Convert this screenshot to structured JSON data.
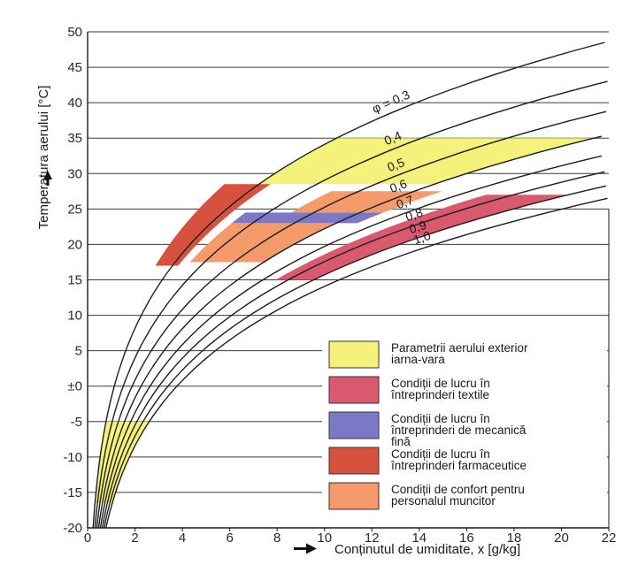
{
  "chart_data": {
    "type": "line",
    "title": "",
    "xlabel": "Conținutul de umiditate, x [g/kg]",
    "ylabel": "Temperatura aerului [°C]",
    "xlim": [
      0,
      22
    ],
    "ylim": [
      -20,
      50
    ],
    "x_ticks": [
      0,
      2,
      4,
      6,
      8,
      10,
      12,
      14,
      16,
      18,
      20,
      22
    ],
    "x_tick_labels": [
      "0",
      "2",
      "4",
      "6",
      "8",
      "10",
      "12",
      "14",
      "16",
      "18",
      "20",
      "22"
    ],
    "y_ticks": [
      -20,
      -15,
      -10,
      -5,
      0,
      5,
      10,
      15,
      20,
      25,
      30,
      35,
      40,
      45,
      50
    ],
    "y_tick_labels": [
      "-20",
      "-15",
      "-10",
      "-5",
      "±0",
      "5",
      "10",
      "15",
      "20",
      "25",
      "30",
      "35",
      "40",
      "45",
      "50"
    ],
    "grid": "horizontal",
    "series": [
      {
        "name": "φ = 0.3",
        "label": "φ = 0.3",
        "phi": 0.3
      },
      {
        "name": "0.4",
        "label": "0,4",
        "phi": 0.4
      },
      {
        "name": "0.5",
        "label": "0,5",
        "phi": 0.5
      },
      {
        "name": "0.6",
        "label": "0,6",
        "phi": 0.6
      },
      {
        "name": "0.7",
        "label": "0,7",
        "phi": 0.7
      },
      {
        "name": "0.8",
        "label": "0,8",
        "phi": 0.8
      },
      {
        "name": "0.9",
        "label": "0,9",
        "phi": 0.9
      },
      {
        "name": "1.0",
        "label": "1,0",
        "phi": 1.0
      }
    ],
    "regions": [
      {
        "id": "exterior",
        "color": "#f4f27a",
        "shapes": [
          {
            "t_low": -16.5,
            "t_high": -5,
            "phi_left": 1.0,
            "phi_right": 0.3
          },
          {
            "t_low": 28.5,
            "t_high": 35,
            "phi_left": 0.3,
            "phi_right": 0.6
          }
        ]
      },
      {
        "id": "textile",
        "color": "#d95a6e",
        "shapes": [
          {
            "t_low": 15,
            "t_high": 27,
            "phi_left": 0.9,
            "phi_right": 0.75
          }
        ]
      },
      {
        "id": "mecanica",
        "color": "#7c78c8",
        "shapes": [
          {
            "t_low": 23,
            "t_high": 24.5,
            "phi_left": 0.35,
            "phi_right": 0.65
          }
        ]
      },
      {
        "id": "farmaceutice",
        "color": "#d6523e",
        "shapes": [
          {
            "t_low": 17,
            "t_high": 28.5,
            "phi_left": 0.24,
            "phi_right": 0.32
          }
        ]
      },
      {
        "id": "confort",
        "color": "#f59a6a",
        "shapes": [
          {
            "t_low": 17.5,
            "t_high": 23,
            "phi_left": 0.35,
            "phi_right": 0.6
          },
          {
            "t_low": 24.5,
            "t_high": 27.5,
            "phi_left": 0.45,
            "phi_right": 0.65
          }
        ]
      }
    ],
    "legend_position": "bottom-right",
    "legend": [
      {
        "region": "exterior",
        "color": "#f4f27a",
        "lines": [
          "Parametrii aerului exterior",
          "iarna-vara"
        ]
      },
      {
        "region": "textile",
        "color": "#d95a6e",
        "lines": [
          "Condiții de lucru în",
          "întreprinderi textile"
        ]
      },
      {
        "region": "mecanica",
        "color": "#7c78c8",
        "lines": [
          "Condiții de lucru în",
          "întreprinderi de mecanică",
          "fină"
        ]
      },
      {
        "region": "farmaceutice",
        "color": "#d6523e",
        "lines": [
          "Condiții de lucru în",
          "întreprinderi farmaceutice"
        ]
      },
      {
        "region": "confort",
        "color": "#f59a6a",
        "lines": [
          "Condiții de confort pentru",
          "personalul muncitor"
        ]
      }
    ]
  }
}
